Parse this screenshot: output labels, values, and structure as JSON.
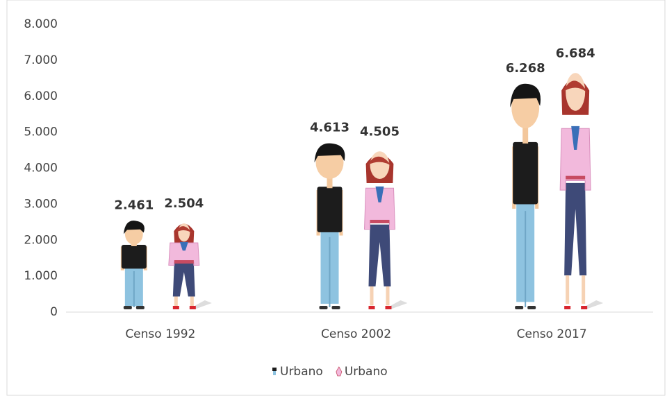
{
  "chart_data": {
    "type": "pictorial-bar",
    "categories": [
      "Censo 1992",
      "Censo 2002",
      "Censo 2017"
    ],
    "series": [
      {
        "name": "Urbano",
        "color": "#1c1c1c",
        "values": [
          2461,
          4613,
          6268
        ],
        "value_labels": [
          "2.461",
          "4.613",
          "6.268"
        ]
      },
      {
        "name": "Urbano",
        "color": "#f2b9dc",
        "values": [
          2504,
          4505,
          6684
        ],
        "value_labels": [
          "2.504",
          "4.505",
          "6.684"
        ]
      }
    ],
    "ylim": [
      0,
      8000
    ],
    "yticks": [
      {
        "value": 0,
        "label": "0"
      },
      {
        "value": 1000,
        "label": "1.000"
      },
      {
        "value": 2000,
        "label": "2.000"
      },
      {
        "value": 3000,
        "label": "3.000"
      },
      {
        "value": 4000,
        "label": "4.000"
      },
      {
        "value": 5000,
        "label": "5.000"
      },
      {
        "value": 6000,
        "label": "6.000"
      },
      {
        "value": 7000,
        "label": "7.000"
      },
      {
        "value": 8000,
        "label": "8.000"
      }
    ],
    "legend": "bottom"
  }
}
